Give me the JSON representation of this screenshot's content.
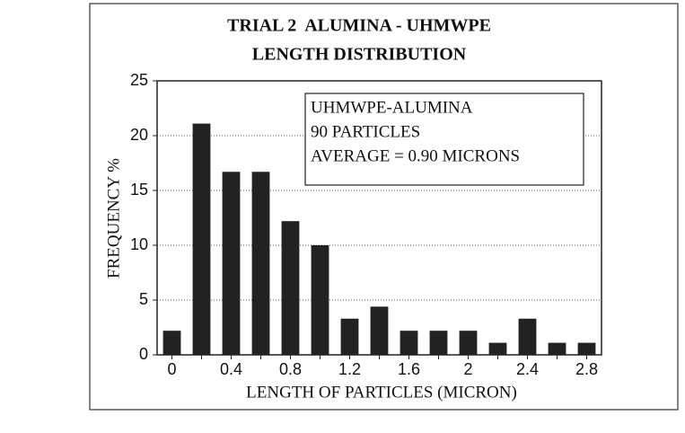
{
  "chart_data": {
    "type": "bar",
    "title": "TRIAL 2  ALUMINA - UHMWPE",
    "subtitle": "LENGTH DISTRIBUTION",
    "x_label": "LENGTH OF PARTICLES (MICRON)",
    "y_label": "FREQUENCY %",
    "annotations": [
      "UHMWPE-ALUMINA",
      "90 PARTICLES",
      "AVERAGE = 0.90 MICRONS"
    ],
    "categories": [
      "0",
      null,
      "0.4",
      null,
      "0.8",
      null,
      "1.2",
      null,
      "1.6",
      null,
      "2",
      null,
      "2.4",
      null,
      "2.8"
    ],
    "values": [
      2.2,
      21.1,
      16.7,
      16.7,
      12.2,
      10,
      3.3,
      4.4,
      2.2,
      2.2,
      2.2,
      1.1,
      3.3,
      1.1,
      1.1
    ],
    "color": "#222222",
    "ylim": [
      0,
      25
    ],
    "yticks": [
      0,
      5,
      10,
      15,
      20,
      25
    ],
    "grid": true
  }
}
